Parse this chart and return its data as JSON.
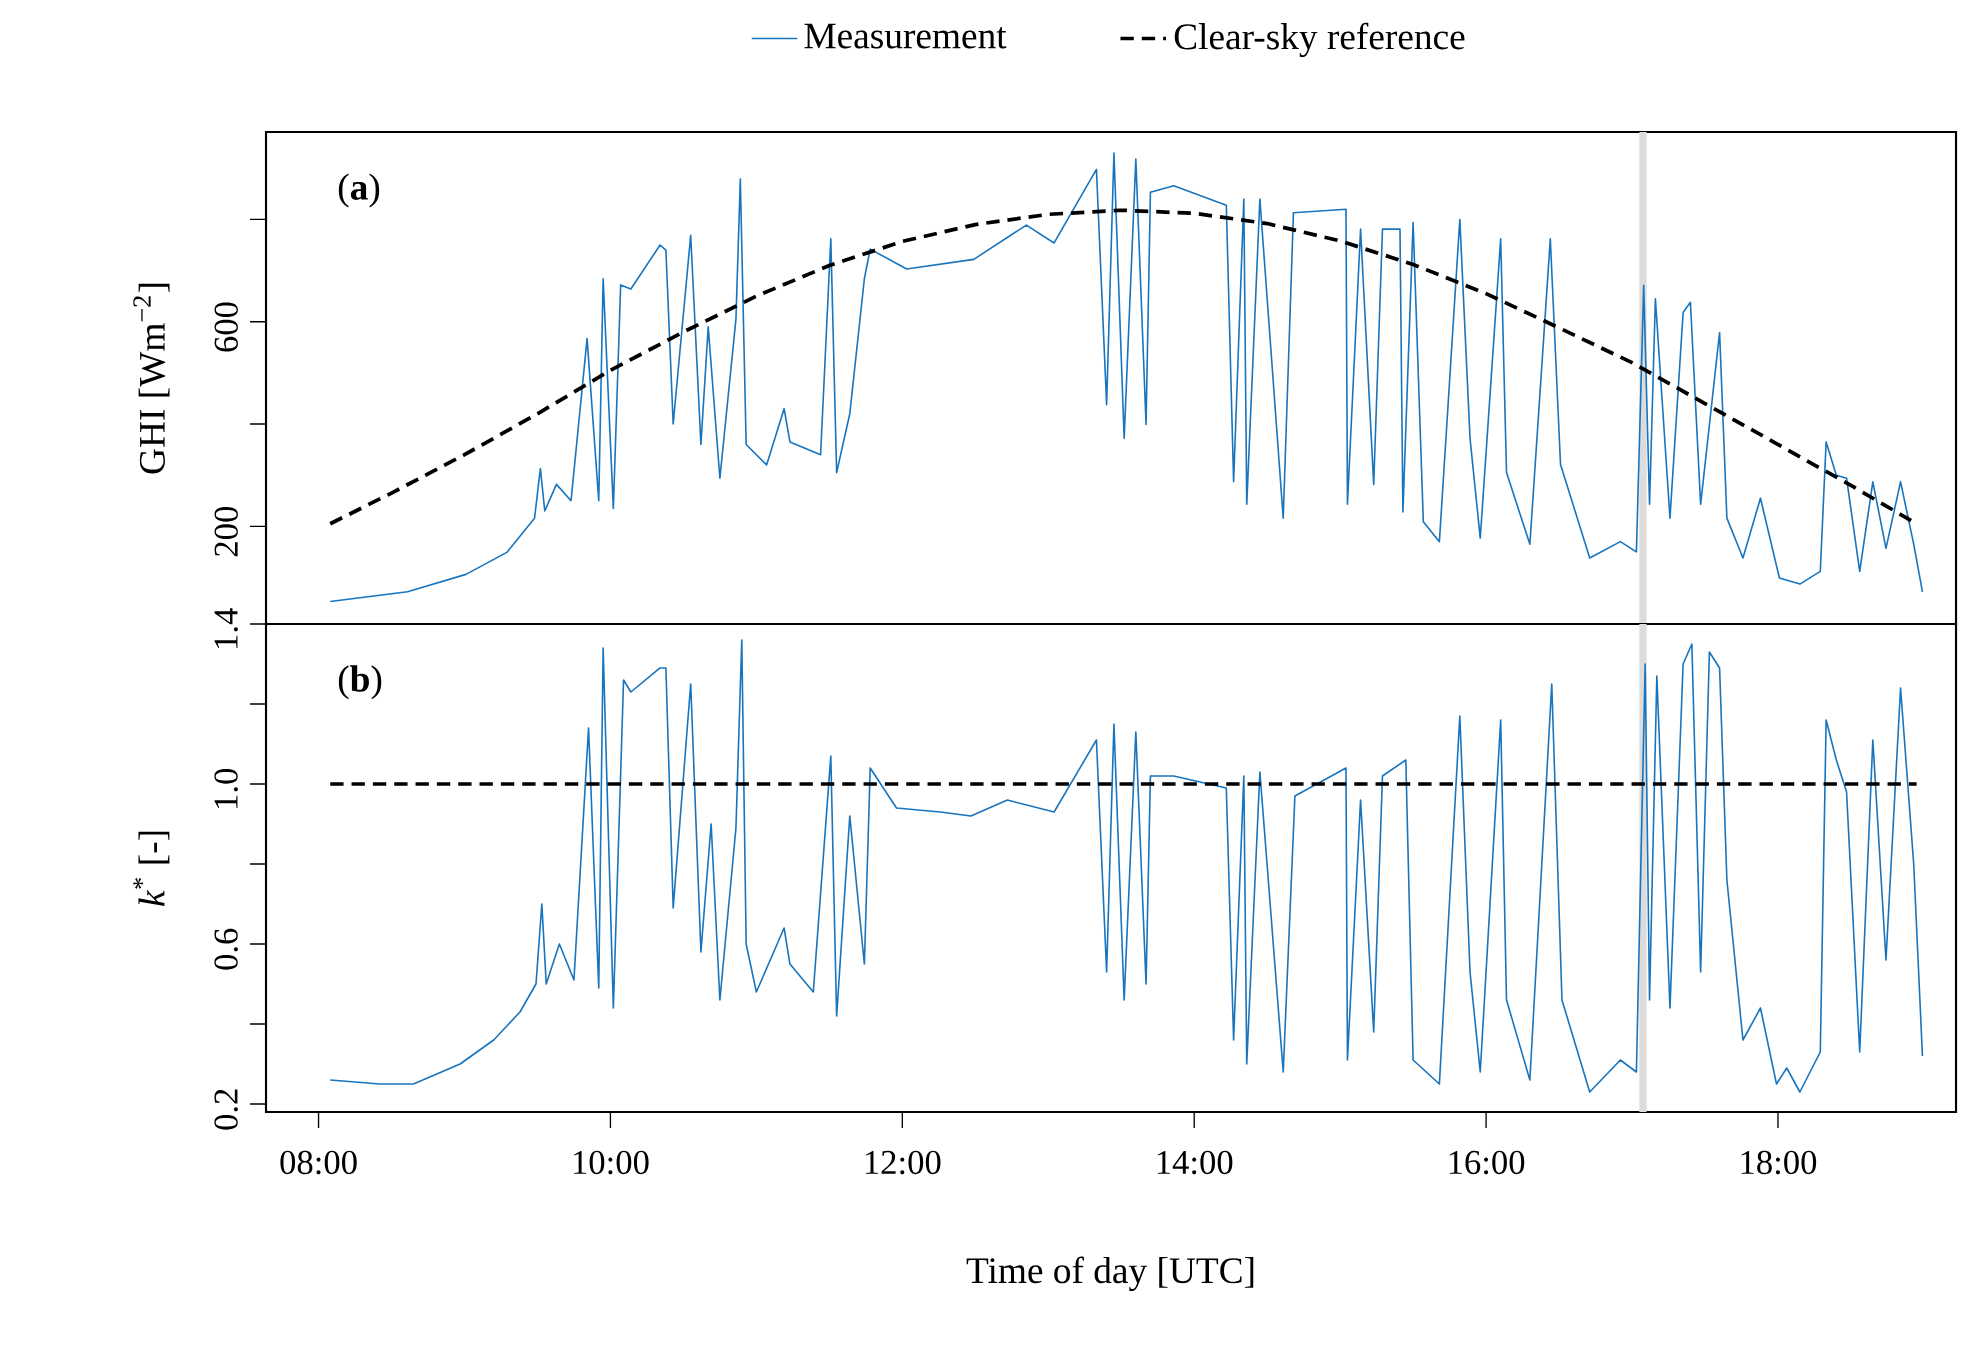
{
  "chart_data": [
    {
      "type": "line",
      "ylabel": "GHI [Wm$^{−2}$]",
      "annotations": [
        "(**a**)"
      ],
      "legend": "top",
      "tick_labels": "y",
      "xlim": [
        7.64,
        19.22
      ],
      "ylim": [
        9,
        971
      ],
      "yticks": [
        200,
        {
          "value": 400,
          "label": null
        },
        600,
        {
          "value": 800,
          "label": null
        }
      ],
      "bands": [
        {
          "axis": "x",
          "from": 17.05,
          "to": 17.1,
          "color": "#dcdcdc"
        }
      ],
      "series": [
        {
          "name": "Measurement",
          "color": "#1874bd",
          "line_style": "solid",
          "x": [
            8.08,
            8.61,
            9.01,
            9.29,
            9.48,
            9.52,
            9.55,
            9.63,
            9.73,
            9.84,
            9.92,
            9.95,
            10.02,
            10.07,
            10.14,
            10.34,
            10.38,
            10.43,
            10.55,
            10.62,
            10.67,
            10.75,
            10.86,
            10.89,
            10.93,
            11.07,
            11.19,
            11.23,
            11.44,
            11.51,
            11.55,
            11.64,
            11.74,
            11.78,
            12.03,
            12.49,
            12.85,
            13.04,
            13.33,
            13.4,
            13.45,
            13.52,
            13.6,
            13.67,
            13.7,
            13.86,
            14.22,
            14.27,
            14.34,
            14.36,
            14.45,
            14.61,
            14.68,
            15.04,
            15.05,
            15.14,
            15.23,
            15.29,
            15.41,
            15.43,
            15.5,
            15.57,
            15.68,
            15.82,
            15.89,
            15.96,
            16.1,
            16.14,
            16.3,
            16.44,
            16.51,
            16.71,
            16.92,
            17.03,
            17.08,
            17.12,
            17.16,
            17.26,
            17.35,
            17.4,
            17.47,
            17.6,
            17.65,
            17.76,
            17.88,
            18.01,
            18.15,
            18.29,
            18.33,
            18.4,
            18.47,
            18.56,
            18.65,
            18.74,
            18.84,
            18.93,
            18.99
          ],
          "values": [
            53,
            72,
            106,
            149,
            216,
            313,
            230,
            282,
            250,
            567,
            250,
            684,
            235,
            672,
            664,
            750,
            740,
            400,
            769,
            360,
            590,
            294,
            605,
            879,
            360,
            320,
            430,
            365,
            340,
            762,
            305,
            420,
            684,
            742,
            703,
            722,
            789,
            754,
            898,
            438,
            930,
            372,
            918,
            399,
            853,
            866,
            828,
            287,
            840,
            243,
            840,
            216,
            813,
            820,
            243,
            781,
            282,
            781,
            781,
            228,
            794,
            209,
            170,
            800,
            372,
            177,
            762,
            305,
            165,
            762,
            321,
            138,
            170,
            150,
            671,
            243,
            645,
            216,
            618,
            638,
            243,
            579,
            216,
            138,
            255,
            99,
            87,
            112,
            365,
            300,
            294,
            112,
            287,
            157,
            287,
            165,
            72
          ]
        },
        {
          "name": "Clear-sky reference",
          "color": "#000000",
          "line_style": "dashed",
          "x": [
            8.08,
            8.5,
            9.0,
            9.5,
            10.0,
            10.5,
            11.0,
            11.5,
            12.0,
            12.5,
            13.0,
            13.5,
            14.0,
            14.5,
            15.0,
            15.5,
            16.0,
            16.5,
            17.0,
            17.5,
            18.0,
            18.5,
            18.95
          ],
          "values": [
            205,
            265,
            340,
            420,
            505,
            580,
            650,
            710,
            757,
            790,
            810,
            818,
            812,
            792,
            758,
            712,
            655,
            588,
            520,
            440,
            360,
            280,
            205
          ]
        }
      ]
    },
    {
      "type": "line",
      "ylabel": "*k*$^{*}$ [-]",
      "xlabel": "Time of day [UTC]",
      "annotations": [
        "(**b**)"
      ],
      "xlim": [
        7.64,
        19.22
      ],
      "ylim": [
        0.18,
        1.4
      ],
      "xticks": [
        {
          "value": 8,
          "label": "08:00"
        },
        {
          "value": 10,
          "label": "10:00"
        },
        {
          "value": 12,
          "label": "12:00"
        },
        {
          "value": 14,
          "label": "14:00"
        },
        {
          "value": 16,
          "label": "16:00"
        },
        {
          "value": 18,
          "label": "18:00"
        }
      ],
      "yticks": [
        0.2,
        {
          "value": 0.4,
          "label": null
        },
        0.6,
        {
          "value": 0.8,
          "label": null
        },
        {
          "value": 1.0,
          "label": "1.0"
        },
        {
          "value": 1.2,
          "label": null
        },
        1.4
      ],
      "bands": [
        {
          "axis": "x",
          "from": 17.05,
          "to": 17.1,
          "color": "#dcdcdc"
        }
      ],
      "series": [
        {
          "color": "#1874bd",
          "line_style": "solid",
          "x": [
            8.08,
            8.42,
            8.65,
            8.97,
            9.2,
            9.38,
            9.49,
            9.53,
            9.56,
            9.65,
            9.75,
            9.85,
            9.92,
            9.95,
            10.02,
            10.09,
            10.14,
            10.34,
            10.38,
            10.43,
            10.55,
            10.62,
            10.69,
            10.75,
            10.86,
            10.9,
            10.93,
            11.0,
            11.19,
            11.23,
            11.39,
            11.51,
            11.55,
            11.64,
            11.74,
            11.78,
            11.96,
            12.26,
            12.47,
            12.72,
            13.04,
            13.33,
            13.4,
            13.45,
            13.52,
            13.6,
            13.67,
            13.7,
            13.86,
            14.22,
            14.27,
            14.34,
            14.36,
            14.45,
            14.61,
            14.69,
            15.04,
            15.05,
            15.14,
            15.23,
            15.29,
            15.45,
            15.5,
            15.68,
            15.82,
            15.89,
            15.96,
            16.1,
            16.14,
            16.3,
            16.45,
            16.52,
            16.71,
            16.92,
            17.03,
            17.09,
            17.12,
            17.17,
            17.26,
            17.35,
            17.41,
            17.47,
            17.53,
            17.6,
            17.65,
            17.76,
            17.88,
            17.99,
            18.06,
            18.15,
            18.29,
            18.33,
            18.4,
            18.47,
            18.56,
            18.65,
            18.74,
            18.84,
            18.93,
            18.99
          ],
          "values": [
            0.26,
            0.25,
            0.25,
            0.3,
            0.36,
            0.43,
            0.5,
            0.7,
            0.5,
            0.6,
            0.51,
            1.14,
            0.49,
            1.34,
            0.44,
            1.26,
            1.23,
            1.29,
            1.29,
            0.69,
            1.25,
            0.58,
            0.9,
            0.46,
            0.89,
            1.36,
            0.6,
            0.48,
            0.64,
            0.55,
            0.48,
            1.07,
            0.42,
            0.92,
            0.55,
            1.04,
            0.94,
            0.93,
            0.92,
            0.96,
            0.93,
            1.11,
            0.53,
            1.15,
            0.46,
            1.13,
            0.5,
            1.02,
            1.02,
            0.99,
            0.36,
            1.02,
            0.3,
            1.03,
            0.28,
            0.97,
            1.04,
            0.31,
            0.96,
            0.38,
            1.02,
            1.06,
            0.31,
            0.25,
            1.17,
            0.53,
            0.28,
            1.16,
            0.46,
            0.26,
            1.25,
            0.46,
            0.23,
            0.31,
            0.28,
            1.3,
            0.46,
            1.27,
            0.44,
            1.3,
            1.35,
            0.53,
            1.33,
            1.29,
            0.76,
            0.36,
            0.44,
            0.25,
            0.29,
            0.23,
            0.33,
            1.16,
            1.06,
            0.98,
            0.33,
            1.11,
            0.56,
            1.24,
            0.8,
            0.32
          ]
        },
        {
          "color": "#000000",
          "line_style": "dashed",
          "x": [
            8.08,
            18.95
          ],
          "values": [
            1.0,
            1.0
          ]
        }
      ]
    }
  ]
}
